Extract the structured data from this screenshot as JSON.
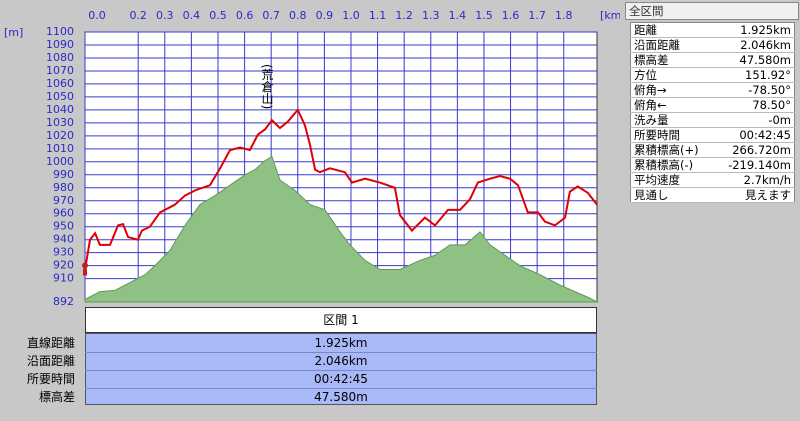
{
  "chart_data": {
    "type": "line",
    "x_unit": "[km]",
    "y_unit": "[m]",
    "annotation": "(荒倉山)",
    "xlim": [
      0,
      1.925
    ],
    "ylim": [
      892,
      1100
    ],
    "xticks": [
      {
        "value": 0,
        "label": "0.0"
      },
      0.2,
      0.3,
      0.4,
      0.5,
      0.6,
      0.7,
      0.8,
      0.9,
      {
        "value": 1,
        "label": "1.0"
      },
      1.1,
      1.2,
      1.3,
      1.4,
      1.5,
      1.6,
      1.7,
      1.8
    ],
    "yticks": [
      892,
      910,
      920,
      930,
      940,
      950,
      960,
      970,
      980,
      990,
      1000,
      1010,
      1020,
      1030,
      1040,
      1050,
      1060,
      1070,
      1080,
      1090,
      1100
    ],
    "grid": true,
    "series": [
      {
        "kind": "area",
        "color": "#8fc084",
        "x": [
          0,
          0.056,
          0.113,
          0.169,
          0.226,
          0.263,
          0.32,
          0.376,
          0.432,
          0.489,
          0.545,
          0.602,
          0.639,
          0.677,
          0.703,
          0.733,
          0.789,
          0.846,
          0.902,
          0.959,
          0.996,
          1.053,
          1.109,
          1.184,
          1.259,
          1.316,
          1.372,
          1.429,
          1.485,
          1.523,
          1.579,
          1.635,
          1.711,
          1.786,
          1.842,
          1.898,
          1.925
        ],
        "values": [
          894,
          900,
          901,
          907,
          913,
          920,
          932,
          951,
          967,
          974,
          982,
          990,
          994,
          1001,
          1004,
          986,
          978,
          967,
          963,
          946,
          936,
          924,
          917,
          917,
          924,
          928,
          936,
          936,
          946,
          936,
          928,
          920,
          913,
          905,
          900,
          895,
          892
        ]
      },
      {
        "kind": "line",
        "color": "#e00000",
        "x": [
          0,
          0.019,
          0.038,
          0.056,
          0.094,
          0.124,
          0.143,
          0.162,
          0.199,
          0.214,
          0.244,
          0.282,
          0.338,
          0.376,
          0.414,
          0.47,
          0.508,
          0.545,
          0.583,
          0.62,
          0.65,
          0.677,
          0.703,
          0.733,
          0.763,
          0.8,
          0.827,
          0.846,
          0.865,
          0.883,
          0.921,
          0.977,
          1.004,
          1.053,
          1.109,
          1.165,
          1.184,
          1.229,
          1.278,
          1.316,
          1.365,
          1.41,
          1.447,
          1.477,
          1.523,
          1.56,
          1.598,
          1.628,
          1.665,
          1.703,
          1.729,
          1.767,
          1.805,
          1.823,
          1.853,
          1.891,
          1.925
        ],
        "values": [
          917,
          940,
          945,
          936,
          936,
          951,
          952,
          942,
          940,
          947,
          950,
          961,
          967,
          974,
          978,
          982,
          995,
          1009,
          1011,
          1009,
          1021,
          1025,
          1032,
          1026,
          1031,
          1040,
          1028,
          1013,
          994,
          992,
          995,
          992,
          984,
          987,
          984,
          980,
          959,
          947,
          957,
          951,
          963,
          963,
          971,
          984,
          987,
          989,
          987,
          982,
          961,
          961,
          954,
          951,
          957,
          977,
          981,
          976,
          967
        ]
      }
    ]
  },
  "section": {
    "title": "区間 1",
    "rows": [
      [
        "直線距離",
        "1.925km"
      ],
      [
        "沿面距離",
        "2.046km"
      ],
      [
        "所要時間",
        "00:42:45"
      ],
      [
        "標高差",
        "47.580m"
      ]
    ]
  },
  "summary": {
    "title": "全区間",
    "rows": [
      [
        "距離",
        "1.925km"
      ],
      [
        "沿面距離",
        "2.046km"
      ],
      [
        "標高差",
        "47.580m"
      ],
      [
        "方位",
        "151.92°"
      ],
      [
        "俯角→",
        "-78.50°"
      ],
      [
        "俯角←",
        "78.50°"
      ],
      [
        "洗み量",
        "-0m"
      ],
      [
        "所要時間",
        "00:42:45"
      ],
      [
        "累積標高(+)",
        "266.720m"
      ],
      [
        "累積標高(-)",
        "-219.140m"
      ],
      [
        "平均速度",
        "2.7km/h"
      ],
      [
        "見通し",
        "見えます"
      ]
    ]
  }
}
